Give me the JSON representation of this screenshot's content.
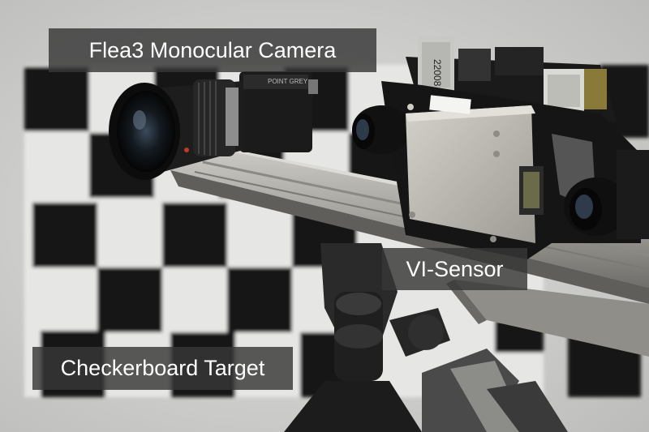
{
  "labels": {
    "camera": "Flea3 Monocular Camera",
    "sensor": "VI-Sensor",
    "target": "Checkerboard Target"
  },
  "lens_text": {
    "pointgrey": "POINT GREY",
    "board_serial": "22008"
  },
  "colors": {
    "wall": "#cfcfcd",
    "checker_dark": "#141414",
    "checker_light": "#e6e6e4",
    "rail": "#a9a8a2",
    "sensor_box": "#b9b7b0",
    "tripod": "#2a2a2a",
    "label_bg": "#373737"
  }
}
